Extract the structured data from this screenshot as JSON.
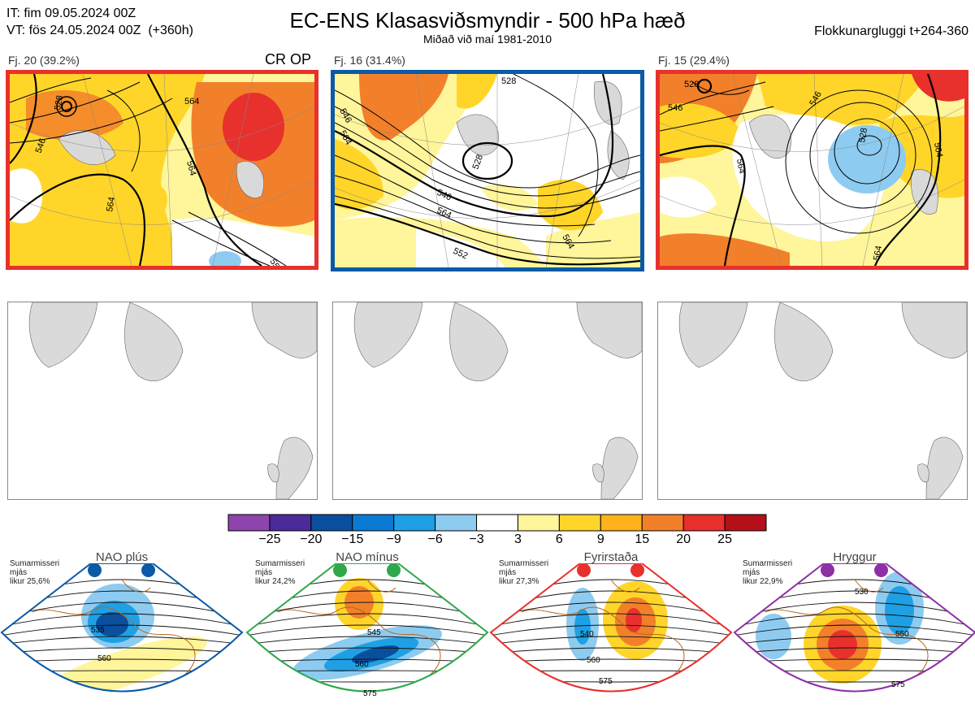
{
  "header": {
    "left": "IT: fim 09.05.2024 00Z\nVT: fös 24.05.2024 00Z  (+360h)",
    "title": "EC-ENS Klasasviðsmyndir - 500 hPa hæð",
    "subtitle": "Miðað við maí 1981-2010",
    "right": "Flokkunargluggi t+264-360"
  },
  "colors": {
    "red": "#e8302c",
    "blue": "#0a5aa6",
    "green": "#2ea84a",
    "purple": "#8e2fa6"
  },
  "panels": [
    {
      "label": "Fj. 20 (39.2%)",
      "tag": "CR OP",
      "border": "#e8302c",
      "contours": [
        "546",
        "564",
        "564",
        "564",
        "528",
        "552"
      ]
    },
    {
      "label": "Fj. 16 (31.4%)",
      "tag": "",
      "border": "#0a5aa6",
      "contours": [
        "528",
        "546",
        "564",
        "564",
        "528",
        "546",
        "552",
        "564"
      ]
    },
    {
      "label": "Fj. 15 (29.4%)",
      "tag": "",
      "border": "#e8302c",
      "contours": [
        "528",
        "546",
        "546",
        "564",
        "528",
        "564",
        "564"
      ]
    }
  ],
  "colorbar": {
    "colors": [
      "#8e44ad",
      "#4b2a9a",
      "#0a4f9e",
      "#0a7bd4",
      "#1fa0e4",
      "#8ecbf0",
      "#ffffff",
      "#fff59a",
      "#ffd52a",
      "#ffb21a",
      "#f2802a",
      "#e8302c",
      "#b3101a"
    ],
    "ticks": [
      "−25",
      "−20",
      "−15",
      "−9",
      "−6",
      "−3",
      "3",
      "6",
      "9",
      "15",
      "20",
      "25"
    ]
  },
  "regimes": [
    {
      "title": "NAO plús",
      "note": "Sumarmisseri\nmjás\nlikur 25,6%",
      "color": "#0a5aa6",
      "labels": [
        "535",
        "560"
      ]
    },
    {
      "title": "NAO mínus",
      "note": "Sumarmisseri\nmjás\nlikur 24,2%",
      "color": "#2ea84a",
      "labels": [
        "545",
        "560",
        "575"
      ]
    },
    {
      "title": "Fyrirstaða",
      "note": "Sumarmisseri\nmjás\nlikur 27,3%",
      "color": "#e8302c",
      "labels": [
        "540",
        "560",
        "575"
      ]
    },
    {
      "title": "Hryggur",
      "note": "Sumarmisseri\nmjás\nlikur 22,9%",
      "color": "#8e2fa6",
      "labels": [
        "530",
        "550",
        "575"
      ]
    }
  ],
  "chart_data": {
    "type": "heatmap",
    "title": "EC-ENS Klasasviðsmyndir - 500 hPa hæð",
    "subtitle": "Miðað við maí 1981-2010",
    "clusters": [
      {
        "name": "Fj. 20",
        "percent": 39.2
      },
      {
        "name": "Fj. 16",
        "percent": 31.4
      },
      {
        "name": "Fj. 15",
        "percent": 29.4
      }
    ],
    "colorbar_bounds": [
      -25,
      -20,
      -15,
      -9,
      -6,
      -3,
      3,
      6,
      9,
      15,
      20,
      25
    ],
    "regimes": [
      {
        "name": "NAO plús",
        "percent": 25.6
      },
      {
        "name": "NAO mínus",
        "percent": 24.2
      },
      {
        "name": "Fyrirstaða",
        "percent": 27.3
      },
      {
        "name": "Hryggur",
        "percent": 22.9
      }
    ]
  }
}
